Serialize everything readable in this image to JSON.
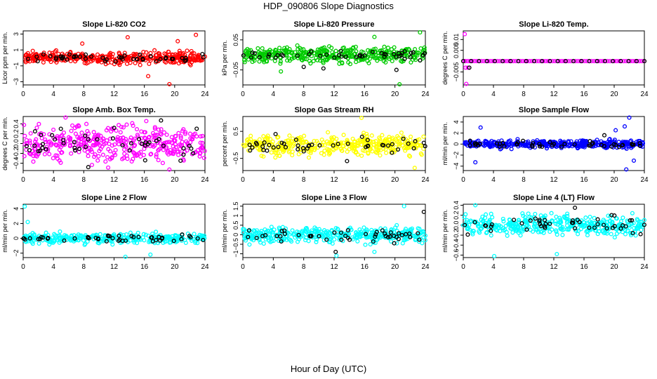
{
  "figure": {
    "title": "HDP_090806  Slope Diagnostics",
    "xlabel": "Hour of Day (UTC)"
  },
  "chart_data": [
    {
      "type": "scatter",
      "title": "Slope Li-820 CO2",
      "ylabel": "Licor ppm per min.",
      "xlim": [
        0,
        24
      ],
      "ylim": [
        -3.4,
        3.4
      ],
      "xticks": [
        0,
        4,
        8,
        12,
        16,
        20,
        24
      ],
      "yticks": [
        -3,
        -1,
        1,
        3
      ],
      "grid": false,
      "series": [
        {
          "color": "#ff0000",
          "n": 380,
          "center": 0.0,
          "spread": 0.6,
          "values": [
            [
              19.3,
              -3.3
            ],
            [
              22.8,
              2.9
            ],
            [
              20.4,
              2.1
            ],
            [
              13.8,
              2.6
            ],
            [
              16.5,
              -2.3
            ],
            [
              7.8,
              1.8
            ]
          ]
        },
        {
          "color": "#000000",
          "n": 45,
          "center": 0.0,
          "spread": 0.4,
          "values": [
            [
              13.4,
              0.3
            ],
            [
              17.6,
              -0.4
            ],
            [
              21.5,
              -0.3
            ]
          ]
        }
      ]
    },
    {
      "type": "scatter",
      "title": "Slope Li-820 Pressure",
      "ylabel": "kPa per min.",
      "xlim": [
        0,
        24
      ],
      "ylim": [
        -0.1,
        0.08
      ],
      "xticks": [
        0,
        4,
        8,
        12,
        16,
        20,
        24
      ],
      "yticks": [
        -0.05,
        0.05
      ],
      "grid": false,
      "series": [
        {
          "color": "#00cc00",
          "n": 380,
          "center": 0.0,
          "spread": 0.022,
          "values": [
            [
              23.3,
              0.075
            ],
            [
              20.6,
              -0.098
            ],
            [
              17.3,
              0.06
            ],
            [
              5.0,
              -0.055
            ]
          ]
        },
        {
          "color": "#000000",
          "n": 45,
          "center": 0.0,
          "spread": 0.012,
          "values": [
            [
              10.6,
              -0.045
            ],
            [
              20.2,
              -0.05
            ],
            [
              8.0,
              -0.04
            ]
          ]
        }
      ]
    },
    {
      "type": "scatter",
      "title": "Slope Li-820 Temp.",
      "ylabel": "degrees C per min.",
      "xlim": [
        0,
        24
      ],
      "ylim": [
        -0.011,
        0.014
      ],
      "xticks": [
        0,
        4,
        8,
        12,
        16,
        20,
        24
      ],
      "yticks": [
        -0.005,
        0.005,
        0.01
      ],
      "grid": false,
      "series": [
        {
          "color": "#ff00ff",
          "n": 80,
          "center": 0.0,
          "spread": 0.0,
          "values": [
            [
              0.2,
              0.0125
            ],
            [
              0.4,
              -0.0105
            ],
            [
              0.3,
              -0.003
            ],
            [
              0.6,
              -0.003
            ],
            [
              0.2,
              0.0
            ]
          ]
        },
        {
          "color": "#000000",
          "n": 24,
          "center": 0.0,
          "spread": 0.0,
          "values": [
            [
              0.8,
              -0.003
            ]
          ]
        }
      ]
    },
    {
      "type": "scatter",
      "title": "Slope Amb. Box Temp.",
      "ylabel": "degrees C per min.",
      "xlim": [
        0,
        24
      ],
      "ylim": [
        -0.55,
        0.55
      ],
      "xticks": [
        0,
        4,
        8,
        12,
        16,
        20,
        24
      ],
      "yticks": [
        -0.4,
        -0.2,
        0.0,
        0.2,
        0.4
      ],
      "grid": false,
      "series": [
        {
          "color": "#ff00ff",
          "n": 380,
          "center": 0.0,
          "spread": 0.3,
          "values": [
            [
              5.6,
              0.53
            ],
            [
              19.3,
              -0.53
            ]
          ]
        },
        {
          "color": "#000000",
          "n": 45,
          "center": 0.0,
          "spread": 0.25,
          "values": [
            [
              8.6,
              -0.48
            ],
            [
              18.2,
              0.47
            ]
          ]
        }
      ]
    },
    {
      "type": "scatter",
      "title": "Slope Gas Stream RH",
      "ylabel": "percent per min.",
      "xlim": [
        0,
        24
      ],
      "ylim": [
        -0.95,
        1.05
      ],
      "xticks": [
        0,
        4,
        8,
        12,
        16,
        20,
        24
      ],
      "yticks": [
        -0.5,
        0.5
      ],
      "grid": false,
      "series": [
        {
          "color": "#ffff00",
          "n": 380,
          "center": 0.0,
          "spread": 0.32,
          "values": [
            [
              15.6,
              1.0
            ],
            [
              22.6,
              -0.85
            ]
          ]
        },
        {
          "color": "#000000",
          "n": 45,
          "center": 0.0,
          "spread": 0.22,
          "values": [
            [
              13.7,
              -0.6
            ],
            [
              4.3,
              0.4
            ]
          ]
        }
      ]
    },
    {
      "type": "scatter",
      "title": "Slope Sample Flow",
      "ylabel": "ml/min per min.",
      "xlim": [
        0,
        24
      ],
      "ylim": [
        -4.8,
        5.0
      ],
      "xticks": [
        0,
        4,
        8,
        12,
        16,
        20,
        24
      ],
      "yticks": [
        -4,
        -2,
        0,
        2,
        4
      ],
      "grid": false,
      "series": [
        {
          "color": "#0000ff",
          "n": 380,
          "center": 0.0,
          "spread": 0.6,
          "values": [
            [
              22.0,
              4.8
            ],
            [
              21.6,
              -4.6
            ],
            [
              21.4,
              3.2
            ],
            [
              2.3,
              3.0
            ],
            [
              1.6,
              -3.3
            ],
            [
              20.2,
              2.5
            ],
            [
              22.6,
              -3.0
            ]
          ]
        },
        {
          "color": "#000000",
          "n": 45,
          "center": 0.0,
          "spread": 0.5,
          "values": [
            [
              18.7,
              1.6
            ],
            [
              0.9,
              0.6
            ]
          ]
        }
      ]
    },
    {
      "type": "scatter",
      "title": "Slope Line 2 Flow",
      "ylabel": "ml/min per min.",
      "xlim": [
        0,
        24
      ],
      "ylim": [
        -2.6,
        4.6
      ],
      "xticks": [
        0,
        4,
        8,
        12,
        16,
        20,
        24
      ],
      "yticks": [
        -2,
        0,
        2,
        4
      ],
      "grid": false,
      "series": [
        {
          "color": "#00ffff",
          "n": 330,
          "center": 0.0,
          "spread": 0.55,
          "values": [
            [
              0.2,
              4.3
            ],
            [
              0.6,
              2.2
            ],
            [
              13.5,
              -2.5
            ],
            [
              16.8,
              -2.2
            ]
          ]
        },
        {
          "color": "#000000",
          "n": 45,
          "center": 0.0,
          "spread": 0.35,
          "values": [
            [
              0.9,
              0.0
            ]
          ]
        }
      ]
    },
    {
      "type": "scatter",
      "title": "Slope Line 3 Flow",
      "ylabel": "ml/min per min.",
      "xlim": [
        0,
        24
      ],
      "ylim": [
        -1.2,
        1.6
      ],
      "xticks": [
        0,
        4,
        8,
        12,
        16,
        20,
        24
      ],
      "yticks": [
        -1.0,
        -0.5,
        0.0,
        0.5,
        1.0,
        1.5
      ],
      "grid": false,
      "series": [
        {
          "color": "#00ffff",
          "n": 380,
          "center": 0.0,
          "spread": 0.35,
          "values": [
            [
              21.2,
              1.5
            ],
            [
              12.3,
              -1.1
            ],
            [
              17.3,
              -0.9
            ]
          ]
        },
        {
          "color": "#000000",
          "n": 45,
          "center": 0.0,
          "spread": 0.3,
          "values": [
            [
              23.8,
              1.2
            ],
            [
              12.2,
              -0.9
            ],
            [
              19.9,
              -0.45
            ]
          ]
        }
      ]
    },
    {
      "type": "scatter",
      "title": "Slope Line 4 (LT) Flow",
      "ylabel": "ml/min per min.",
      "xlim": [
        0,
        24
      ],
      "ylim": [
        -0.65,
        0.42
      ],
      "xticks": [
        0,
        4,
        8,
        12,
        16,
        20,
        24
      ],
      "yticks": [
        -0.6,
        -0.4,
        -0.2,
        0.0,
        0.2,
        0.4
      ],
      "grid": false,
      "series": [
        {
          "color": "#00ffff",
          "n": 380,
          "center": 0.0,
          "spread": 0.17,
          "values": [
            [
              1.6,
              0.4
            ],
            [
              4.1,
              -0.62
            ],
            [
              12.4,
              -0.58
            ]
          ]
        },
        {
          "color": "#000000",
          "n": 45,
          "center": 0.0,
          "spread": 0.15,
          "values": [
            [
              14.8,
              0.35
            ],
            [
              23.5,
              -0.18
            ]
          ]
        }
      ]
    }
  ]
}
